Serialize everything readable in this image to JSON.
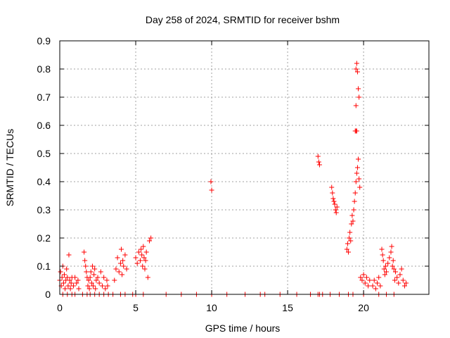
{
  "chart_data": {
    "type": "scatter",
    "title": "Day 258 of 2024, SRMTID for receiver bshm",
    "xlabel": "GPS time / hours",
    "ylabel": "SRMTID / TECUs",
    "xlim": [
      0,
      24.3
    ],
    "ylim": [
      0,
      0.9
    ],
    "grid": true,
    "marker": "plus",
    "color": "#ff0000",
    "xticks": [
      0,
      5,
      10,
      15,
      20
    ],
    "xtick_labels": [
      "0",
      "5",
      "10",
      "15",
      "20"
    ],
    "yticks": [
      0,
      0.1,
      0.2,
      0.3,
      0.4,
      0.5,
      0.6,
      0.7,
      0.8,
      0.9
    ],
    "ytick_labels": [
      "0",
      "0.1",
      "0.2",
      "0.3",
      "0.4",
      "0.5",
      "0.6",
      "0.7",
      "0.8",
      "0.9"
    ],
    "series": [
      {
        "name": "SRMTID",
        "x": [
          0.0,
          0.05,
          0.1,
          0.15,
          0.2,
          0.25,
          0.3,
          0.35,
          0.4,
          0.45,
          0.5,
          0.55,
          0.6,
          0.65,
          0.7,
          0.75,
          0.8,
          0.9,
          1.0,
          1.1,
          1.2,
          1.25,
          1.6,
          1.65,
          1.7,
          1.75,
          1.8,
          1.85,
          1.9,
          1.95,
          2.0,
          2.05,
          2.1,
          2.15,
          2.2,
          2.25,
          2.3,
          2.35,
          2.4,
          2.5,
          2.6,
          2.7,
          2.8,
          2.9,
          3.0,
          3.1,
          3.15,
          3.6,
          3.7,
          3.8,
          3.9,
          4.0,
          4.05,
          4.1,
          4.15,
          4.2,
          4.3,
          4.4,
          5.0,
          5.1,
          5.2,
          5.3,
          5.35,
          5.4,
          5.45,
          5.5,
          5.55,
          5.6,
          5.65,
          5.7,
          5.8,
          5.9,
          6.0,
          9.95,
          10.0,
          17.0,
          17.05,
          17.1,
          17.9,
          17.95,
          18.0,
          18.05,
          18.1,
          18.15,
          18.2,
          18.25,
          18.9,
          18.95,
          19.0,
          19.05,
          19.1,
          19.15,
          19.2,
          19.25,
          19.3,
          19.35,
          19.4,
          19.45,
          19.5,
          19.55,
          19.6,
          19.65,
          19.7,
          19.75,
          19.8,
          19.9,
          20.0,
          20.1,
          20.2,
          20.3,
          20.4,
          20.6,
          20.7,
          20.8,
          20.9,
          21.0,
          21.1,
          21.2,
          21.25,
          21.3,
          21.35,
          21.4,
          21.45,
          21.5,
          21.6,
          21.7,
          21.8,
          21.85,
          21.9,
          21.95,
          22.0,
          22.05,
          22.1,
          22.2,
          22.3,
          22.4,
          22.5,
          22.6,
          22.7,
          22.8,
          19.5,
          19.55,
          19.6,
          19.65,
          19.7,
          19.5,
          19.55,
          19.45,
          19.5,
          0.2,
          0.5,
          0.8,
          1.0,
          1.5,
          1.8,
          2.0,
          2.3,
          2.6,
          2.9,
          3.2,
          3.5,
          4.0,
          4.3,
          4.8,
          5.0,
          5.5,
          7.0,
          8.0,
          9.0,
          10.0,
          11.0,
          12.2,
          13.2,
          13.5,
          14.5,
          15.6,
          16.5,
          17.0,
          17.1,
          17.3,
          17.8,
          18.4,
          19.0,
          19.3,
          20.0,
          21.0,
          21.5,
          22.0
        ],
        "y": [
          0.05,
          0.08,
          0.03,
          0.06,
          0.1,
          0.04,
          0.07,
          0.02,
          0.05,
          0.09,
          0.06,
          0.03,
          0.14,
          0.05,
          0.02,
          0.04,
          0.06,
          0.03,
          0.06,
          0.04,
          0.05,
          0.02,
          0.15,
          0.12,
          0.1,
          0.08,
          0.06,
          0.03,
          0.05,
          0.02,
          0.06,
          0.08,
          0.04,
          0.1,
          0.03,
          0.07,
          0.09,
          0.02,
          0.05,
          0.06,
          0.04,
          0.08,
          0.03,
          0.06,
          0.02,
          0.05,
          0.03,
          0.05,
          0.09,
          0.13,
          0.08,
          0.11,
          0.16,
          0.07,
          0.12,
          0.1,
          0.14,
          0.09,
          0.13,
          0.11,
          0.15,
          0.12,
          0.16,
          0.14,
          0.1,
          0.17,
          0.13,
          0.09,
          0.12,
          0.15,
          0.06,
          0.19,
          0.2,
          0.4,
          0.37,
          0.49,
          0.47,
          0.46,
          0.38,
          0.36,
          0.34,
          0.33,
          0.32,
          0.3,
          0.29,
          0.31,
          0.16,
          0.18,
          0.15,
          0.2,
          0.22,
          0.19,
          0.25,
          0.28,
          0.26,
          0.3,
          0.33,
          0.36,
          0.4,
          0.43,
          0.45,
          0.48,
          0.41,
          0.38,
          0.06,
          0.05,
          0.07,
          0.04,
          0.06,
          0.03,
          0.05,
          0.03,
          0.05,
          0.02,
          0.04,
          0.06,
          0.03,
          0.16,
          0.14,
          0.12,
          0.09,
          0.07,
          0.1,
          0.08,
          0.11,
          0.13,
          0.15,
          0.17,
          0.1,
          0.12,
          0.09,
          0.05,
          0.08,
          0.06,
          0.04,
          0.07,
          0.09,
          0.05,
          0.03,
          0.04,
          0.8,
          0.82,
          0.79,
          0.73,
          0.7,
          0.67,
          0.58,
          0.58,
          0.58,
          0,
          0,
          0,
          0,
          0,
          0,
          0,
          0,
          0,
          0,
          0,
          0,
          0,
          0,
          0,
          0,
          0,
          0,
          0,
          0,
          0,
          0,
          0,
          0,
          0,
          0,
          0,
          0,
          0,
          0,
          0,
          0,
          0,
          0,
          0,
          0,
          0,
          0,
          0
        ]
      }
    ]
  }
}
